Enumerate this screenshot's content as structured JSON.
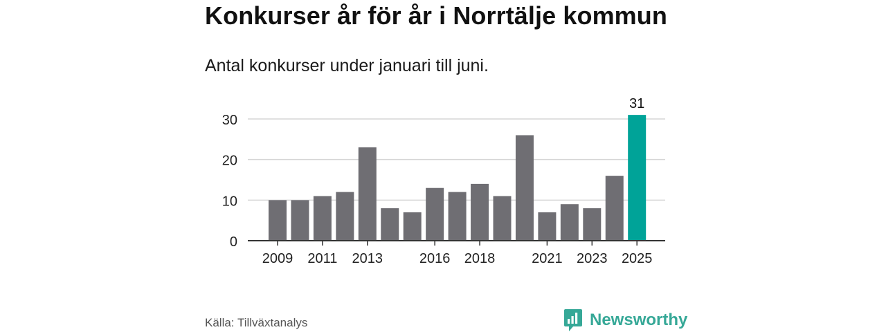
{
  "title": "Konkurser år för år i Norrtälje kommun",
  "subtitle": "Antal konkurser under januari till juni.",
  "source": "Källa: Tillväxtanalys",
  "brand": {
    "name": "Newsworthy",
    "icon": "newsworthy-logo-icon",
    "color": "#36a897"
  },
  "chart_data": {
    "type": "bar",
    "categories": [
      "2009",
      "2010",
      "2011",
      "2012",
      "2013",
      "2014",
      "2015",
      "2016",
      "2017",
      "2018",
      "2019",
      "2020",
      "2021",
      "2022",
      "2023",
      "2024",
      "2025"
    ],
    "values": [
      10,
      10,
      11,
      12,
      23,
      8,
      7,
      13,
      12,
      14,
      11,
      26,
      7,
      9,
      8,
      16,
      31
    ],
    "x_tick_labels": [
      "2009",
      "2011",
      "2013",
      "2016",
      "2018",
      "2021",
      "2023",
      "2025"
    ],
    "y_ticks": [
      0,
      10,
      20,
      30
    ],
    "ylim": [
      0,
      30
    ],
    "grid": true,
    "data_labels": [
      {
        "category": "2025",
        "text": "31"
      }
    ],
    "highlight": {
      "category": "2025",
      "color": "#00a398"
    },
    "bar_color": "#6f6e73",
    "xlabel": "",
    "ylabel": ""
  }
}
